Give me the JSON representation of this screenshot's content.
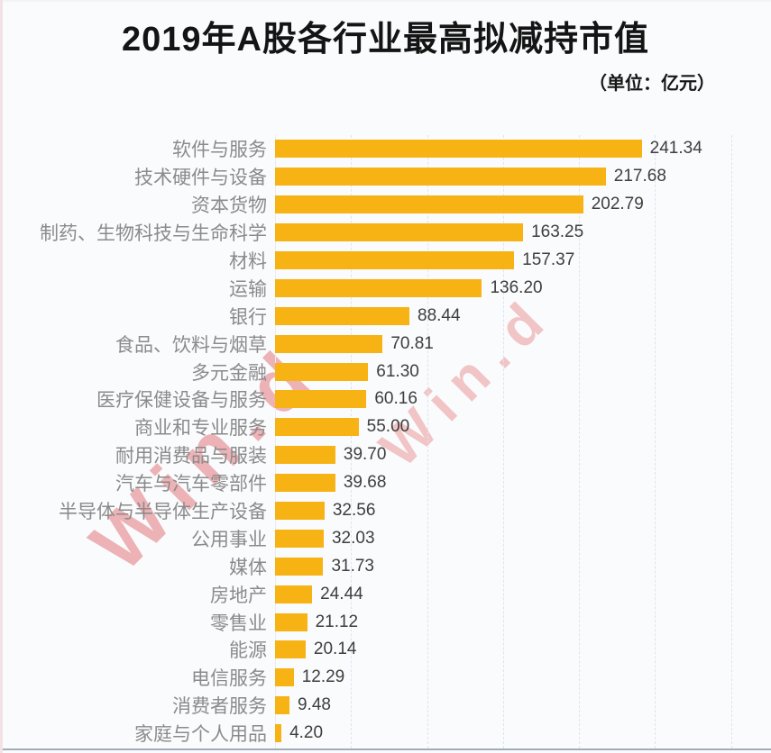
{
  "title": "2019年A股各行业最高拟减持市值",
  "unit_label": "（单位：亿元）",
  "watermark": {
    "text": "Win.d"
  },
  "chart_data": {
    "type": "bar",
    "orientation": "horizontal",
    "title": "2019年A股各行业最高拟减持市值",
    "unit": "亿元",
    "categories": [
      "软件与服务",
      "技术硬件与设备",
      "资本货物",
      "制药、生物科技与生命科学",
      "材料",
      "运输",
      "银行",
      "食品、饮料与烟草",
      "多元金融",
      "医疗保健设备与服务",
      "商业和专业服务",
      "耐用消费品与服装",
      "汽车与汽车零部件",
      "半导体与半导体生产设备",
      "公用事业",
      "媒体",
      "房地产",
      "零售业",
      "能源",
      "电信服务",
      "消费者服务",
      "家庭与个人用品"
    ],
    "values": [
      241.34,
      217.68,
      202.79,
      163.25,
      157.37,
      136.2,
      88.44,
      70.81,
      61.3,
      60.16,
      55.0,
      39.7,
      39.68,
      32.56,
      32.03,
      31.73,
      24.44,
      21.12,
      20.14,
      12.29,
      9.48,
      4.2
    ],
    "value_labels": [
      "241.34",
      "217.68",
      "202.79",
      "163.25",
      "157.37",
      "136.20",
      "88.44",
      "70.81",
      "61.30",
      "60.16",
      "55.00",
      "39.70",
      "39.68",
      "32.56",
      "32.03",
      "31.73",
      "24.44",
      "21.12",
      "20.14",
      "12.29",
      "9.48",
      "4.20"
    ],
    "xlim": [
      0,
      300
    ],
    "x_ticks": [
      50,
      100,
      150,
      200,
      250,
      300
    ],
    "grid": "dashed-vertical",
    "legend": "none",
    "bar_color": "#F7B214",
    "category_label_color": "#8B8B8B",
    "value_label_color": "#3E3E3E",
    "gridline_color": "#DFE4EC",
    "axis_line_color": "#A2ABB8",
    "background_color": "#FAFBFD",
    "watermark_color": "#E5787C"
  }
}
